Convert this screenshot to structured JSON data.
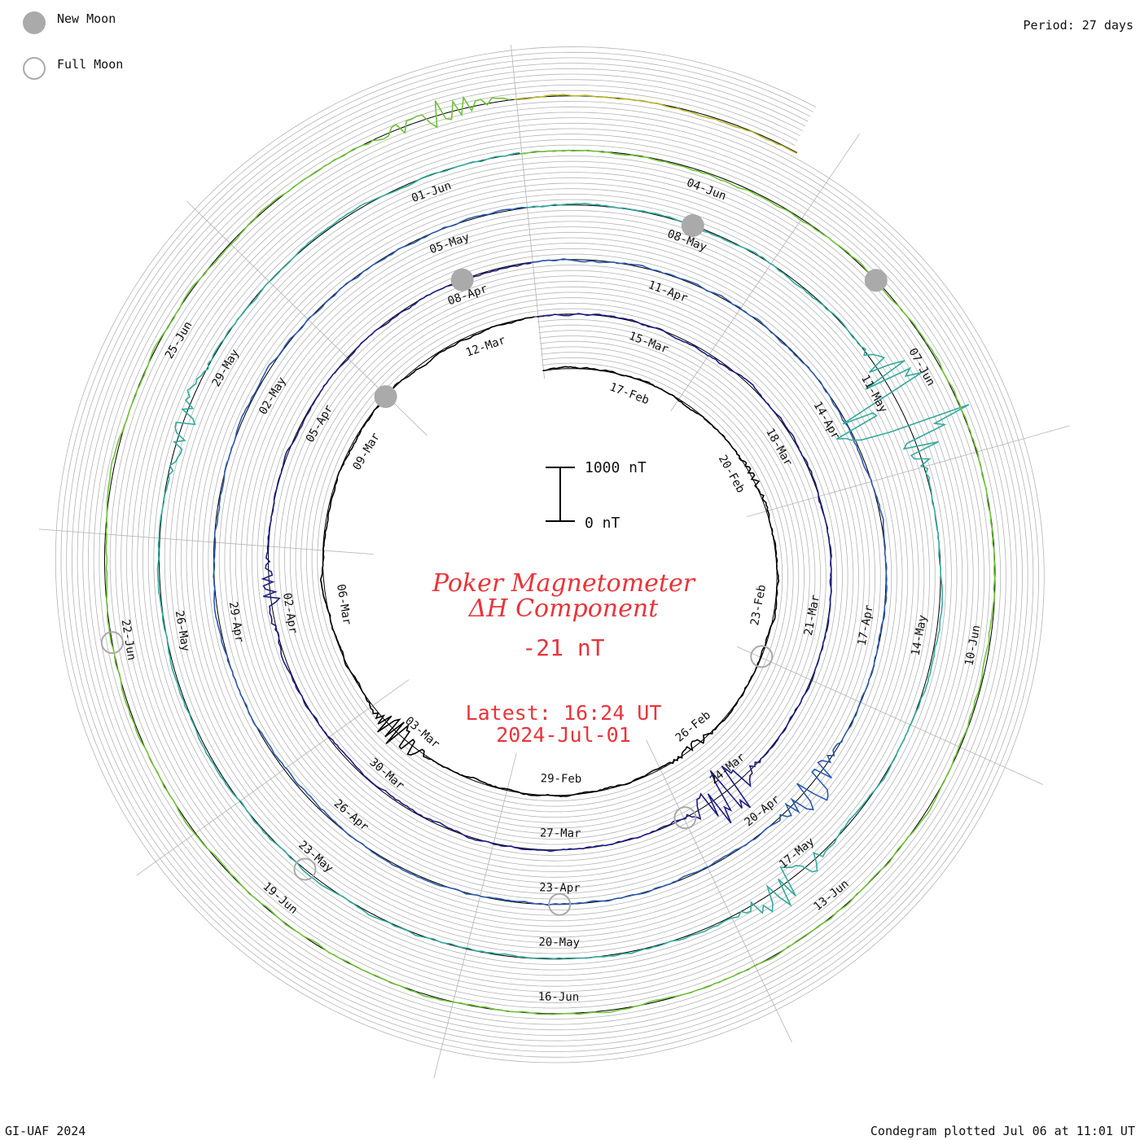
{
  "legend": {
    "new_moon_label": "New Moon",
    "full_moon_label": "Full Moon"
  },
  "period_label": "Period: 27 days",
  "footer": {
    "left": "GI-UAF 2024",
    "right": "Condegram plotted Jul 06 at 11:01 UT"
  },
  "scale": {
    "top_label": "1000 nT",
    "bottom_label": "0 nT"
  },
  "title": {
    "line1": "Poker Magnetometer",
    "line2": "ΔH Component",
    "value": "-21 nT",
    "latest_time": "Latest: 16:24 UT",
    "latest_date": "2024-Jul-01"
  },
  "colors": {
    "title": "#e8343a",
    "grid": "#b4b4b4",
    "moon_fill": "#aaaaaa",
    "cycle_colors": [
      "#000000",
      "#1d1d86",
      "#2c5aae",
      "#33aa9e",
      "#72c23a",
      "#b6b52e",
      "#c76f1b"
    ]
  },
  "chart_data": {
    "type": "line",
    "subtype": "condegram-spiral",
    "title": "Poker Magnetometer ΔH Component",
    "period_days": 27,
    "start_date": "2024-02-15",
    "end_date": "2024-07-01",
    "unit": "nT",
    "scale_bar": [
      0,
      1000
    ],
    "current_value": -21,
    "date_labels": [
      "17-Feb",
      "20-Feb",
      "23-Feb",
      "26-Feb",
      "29-Feb",
      "03-Mar",
      "06-Mar",
      "09-Mar",
      "12-Mar",
      "15-Mar",
      "18-Mar",
      "21-Mar",
      "24-Mar",
      "27-Mar",
      "30-Mar",
      "02-Apr",
      "05-Apr",
      "08-Apr",
      "11-Apr",
      "14-Apr",
      "17-Apr",
      "20-Apr",
      "23-Apr",
      "26-Apr",
      "29-Apr",
      "02-May",
      "05-May",
      "08-May",
      "11-May",
      "14-May",
      "17-May",
      "20-May",
      "23-May",
      "26-May",
      "29-May",
      "01-Jun",
      "04-Jun",
      "07-Jun",
      "10-Jun",
      "13-Jun",
      "16-Jun",
      "19-Jun",
      "22-Jun",
      "25-Jun"
    ],
    "new_moon_dates": [
      "2024-03-10",
      "2024-04-08",
      "2024-05-08",
      "2024-06-06"
    ],
    "full_moon_dates": [
      "2024-02-24",
      "2024-03-25",
      "2024-04-23",
      "2024-05-23",
      "2024-06-22"
    ],
    "disturbance_events": [
      {
        "date": "2024-02-20",
        "peak_nT": 80
      },
      {
        "date": "2024-02-26",
        "peak_nT": 120
      },
      {
        "date": "2024-03-03",
        "peak_nT": 380
      },
      {
        "date": "2024-03-24",
        "peak_nT": 700
      },
      {
        "date": "2024-04-02",
        "peak_nT": 180
      },
      {
        "date": "2024-04-19",
        "peak_nT": 420
      },
      {
        "date": "2024-05-11",
        "peak_nT": 1700
      },
      {
        "date": "2024-05-17",
        "peak_nT": 450
      },
      {
        "date": "2024-05-28",
        "peak_nT": 250
      },
      {
        "date": "2024-06-28",
        "peak_nT": 300
      }
    ]
  }
}
